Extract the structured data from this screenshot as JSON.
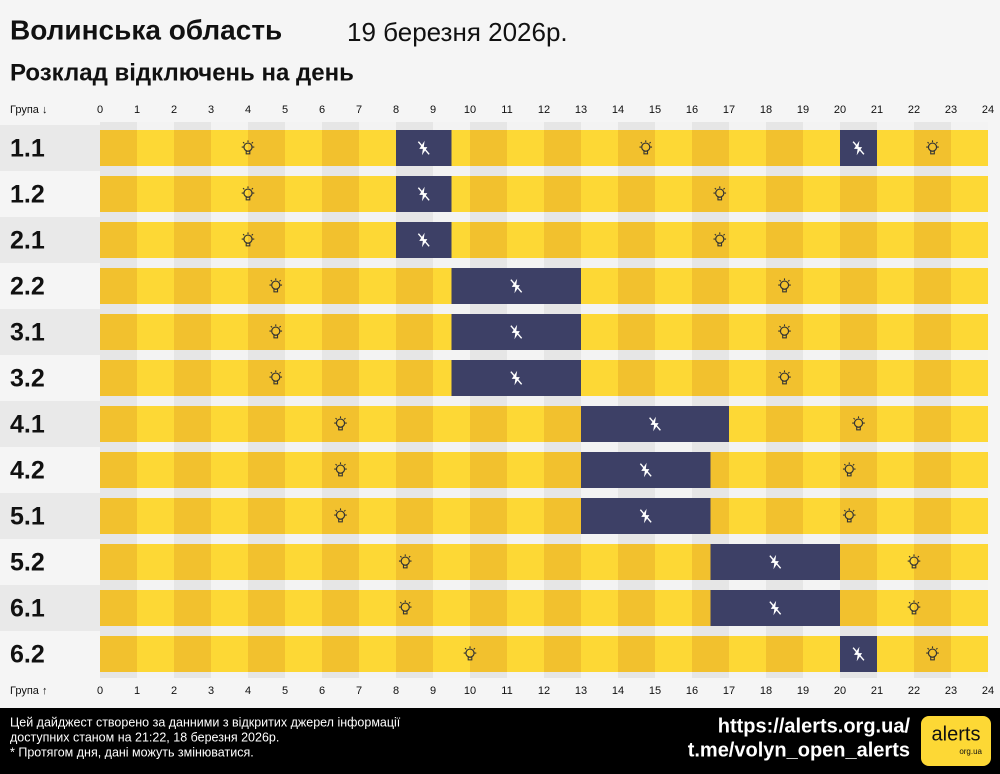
{
  "chart_data": {
    "type": "timeline",
    "title": "Волинська область",
    "date": "19 березня 2026р.",
    "subtitle": "Розклад відключень на день",
    "y_label_top": "Група ↓",
    "y_label_bottom": "Група ↑",
    "xlim": [
      0,
      24
    ],
    "xticks": [
      0,
      1,
      2,
      3,
      4,
      5,
      6,
      7,
      8,
      9,
      10,
      11,
      12,
      13,
      14,
      15,
      16,
      17,
      18,
      19,
      20,
      21,
      22,
      23,
      24
    ],
    "on_color": "#fdd835",
    "on_color_alt": "#f2c12e",
    "off_color": "#3d4066",
    "categories": [
      "1.1",
      "1.2",
      "2.1",
      "2.2",
      "3.1",
      "3.2",
      "4.1",
      "4.2",
      "5.1",
      "5.2",
      "6.1",
      "6.2"
    ],
    "outages": [
      [
        [
          8,
          9.5
        ],
        [
          20,
          21
        ]
      ],
      [
        [
          8,
          9.5
        ]
      ],
      [
        [
          8,
          9.5
        ]
      ],
      [
        [
          9.5,
          13
        ]
      ],
      [
        [
          9.5,
          13
        ]
      ],
      [
        [
          9.5,
          13
        ]
      ],
      [
        [
          13,
          17
        ]
      ],
      [
        [
          13,
          16.5
        ]
      ],
      [
        [
          13,
          16.5
        ]
      ],
      [
        [
          16.5,
          20
        ]
      ],
      [
        [
          16.5,
          20
        ]
      ],
      [
        [
          20,
          21
        ]
      ]
    ]
  },
  "footer": {
    "note": [
      "Цей дайджест створено за данними з відкритих джерел інформації",
      "доступних станом на 21:22, 18 березня 2026р.",
      "* Протягом дня, дані можуть змінюватися."
    ],
    "urls": [
      "https://alerts.org.ua/",
      "t.me/volyn_open_alerts"
    ],
    "logo": "alerts",
    "logo_sub": "org.ua"
  }
}
